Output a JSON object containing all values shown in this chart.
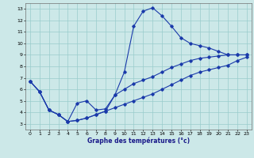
{
  "xlabel": "Graphe des températures (°c)",
  "background_color": "#cce8e8",
  "grid_color": "#99cccc",
  "line_color": "#1a3aaa",
  "xlim": [
    -0.5,
    23.5
  ],
  "ylim": [
    2.5,
    13.5
  ],
  "xticks": [
    0,
    1,
    2,
    3,
    4,
    5,
    6,
    7,
    8,
    9,
    10,
    11,
    12,
    13,
    14,
    15,
    16,
    17,
    18,
    19,
    20,
    21,
    22,
    23
  ],
  "yticks": [
    3,
    4,
    5,
    6,
    7,
    8,
    9,
    10,
    11,
    12,
    13
  ],
  "line1_x": [
    0,
    1,
    2,
    3,
    4,
    5,
    6,
    7,
    8,
    9,
    10,
    11,
    12,
    13,
    14,
    15,
    16,
    17,
    18,
    19,
    20,
    21,
    22,
    23
  ],
  "line1_y": [
    6.7,
    5.8,
    4.2,
    3.8,
    3.2,
    4.8,
    5.0,
    4.2,
    4.3,
    5.5,
    7.5,
    11.5,
    12.8,
    13.1,
    12.4,
    11.5,
    10.5,
    10.0,
    9.8,
    9.6,
    9.3,
    9.0,
    9.0,
    9.0
  ],
  "line2_x": [
    0,
    1,
    2,
    3,
    4,
    5,
    6,
    7,
    8,
    9,
    10,
    11,
    12,
    13,
    14,
    15,
    16,
    17,
    18,
    19,
    20,
    21,
    22,
    23
  ],
  "line2_y": [
    6.7,
    5.8,
    4.2,
    3.8,
    3.2,
    3.3,
    3.5,
    3.8,
    4.1,
    4.4,
    4.7,
    5.0,
    5.3,
    5.6,
    6.0,
    6.4,
    6.8,
    7.2,
    7.5,
    7.7,
    7.9,
    8.1,
    8.5,
    8.8
  ],
  "line3_x": [
    0,
    1,
    2,
    3,
    4,
    5,
    6,
    7,
    8,
    9,
    10,
    11,
    12,
    13,
    14,
    15,
    16,
    17,
    18,
    19,
    20,
    21,
    22,
    23
  ],
  "line3_y": [
    6.7,
    5.8,
    4.2,
    3.8,
    3.2,
    3.3,
    3.5,
    3.8,
    4.1,
    5.5,
    6.0,
    6.5,
    6.8,
    7.1,
    7.5,
    7.9,
    8.2,
    8.5,
    8.7,
    8.8,
    8.9,
    9.0,
    9.0,
    9.0
  ]
}
